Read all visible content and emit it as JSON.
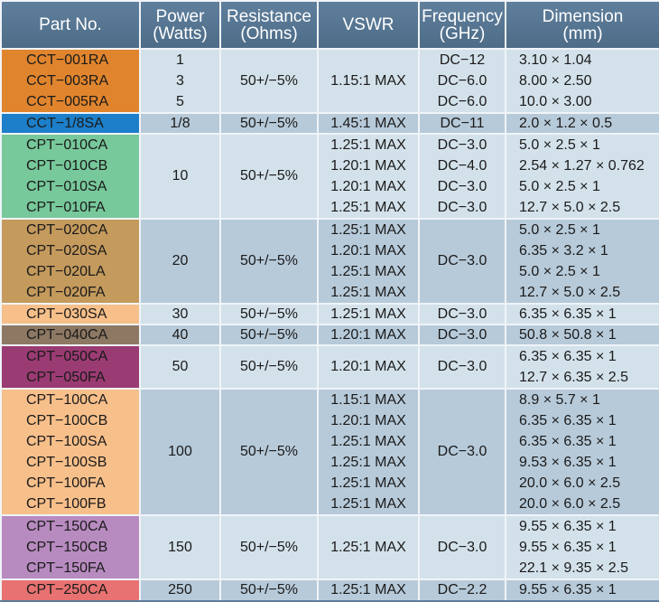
{
  "header": {
    "part_no": "Part No.",
    "power": "Power\n(Watts)",
    "resistance": "Resistance\n(Ohms)",
    "vswr": "VSWR",
    "frequency": "Frequency\n(GHz)",
    "dimension": "Dimension\n(mm)"
  },
  "colors": {
    "row_light": "#d3e1ea",
    "row_dark": "#b7cad9",
    "header_bg": "#5a7a97",
    "groups": [
      "#e0852e",
      "#1d7fc9",
      "#77c89a",
      "#c49a5d",
      "#f7bf8a",
      "#8c7863",
      "#9b3b73",
      "#f7bf8a",
      "#b78bc0",
      "#e87271"
    ]
  },
  "rows": [
    {
      "part": "CCT−001RA",
      "power": "1",
      "resistance": "50+/−5%",
      "vswr": "1.15:1 MAX",
      "frequency": "DC−12",
      "dimension": "3.10 × 1.04"
    },
    {
      "part": "CCT−003RA",
      "power": "3",
      "resistance": "50+/−5%",
      "vswr": "1.15:1 MAX",
      "frequency": "DC−6.0",
      "dimension": "8.00 × 2.50"
    },
    {
      "part": "CCT−005RA",
      "power": "5",
      "resistance": "50+/−5%",
      "vswr": "1.15:1 MAX",
      "frequency": "DC−6.0",
      "dimension": "10.0 × 3.00"
    },
    {
      "part": "CCT−1/8SA",
      "power": "1/8",
      "resistance": "50+/−5%",
      "vswr": "1.45:1 MAX",
      "frequency": "DC−11",
      "dimension": "2.0 × 1.2 × 0.5"
    },
    {
      "part": "CPT−010CA",
      "power": "10",
      "resistance": "50+/−5%",
      "vswr": "1.25:1 MAX",
      "frequency": "DC−3.0",
      "dimension": "5.0 × 2.5 × 1"
    },
    {
      "part": "CPT−010CB",
      "power": "10",
      "resistance": "50+/−5%",
      "vswr": "1.20:1 MAX",
      "frequency": "DC−4.0",
      "dimension": "2.54 × 1.27 × 0.762"
    },
    {
      "part": "CPT−010SA",
      "power": "10",
      "resistance": "50+/−5%",
      "vswr": "1.20:1 MAX",
      "frequency": "DC−3.0",
      "dimension": "5.0 × 2.5 × 1"
    },
    {
      "part": "CPT−010FA",
      "power": "10",
      "resistance": "50+/−5%",
      "vswr": "1.25:1 MAX",
      "frequency": "DC−3.0",
      "dimension": "12.7 × 5.0 × 2.5"
    },
    {
      "part": "CPT−020CA",
      "power": "20",
      "resistance": "50+/−5%",
      "vswr": "1.25:1 MAX",
      "frequency": "DC−3.0",
      "dimension": "5.0 × 2.5 × 1"
    },
    {
      "part": "CPT−020SA",
      "power": "20",
      "resistance": "50+/−5%",
      "vswr": "1.20:1 MAX",
      "frequency": "DC−3.0",
      "dimension": "6.35 × 3.2 × 1"
    },
    {
      "part": "CPT−020LA",
      "power": "20",
      "resistance": "50+/−5%",
      "vswr": "1.25:1 MAX",
      "frequency": "DC−3.0",
      "dimension": "5.0 × 2.5 × 1"
    },
    {
      "part": "CPT−020FA",
      "power": "20",
      "resistance": "50+/−5%",
      "vswr": "1.25:1 MAX",
      "frequency": "DC−3.0",
      "dimension": "12.7 × 5.0 × 2.5"
    },
    {
      "part": "CPT−030SA",
      "power": "30",
      "resistance": "50+/−5%",
      "vswr": "1.25:1 MAX",
      "frequency": "DC−3.0",
      "dimension": "6.35 × 6.35 × 1"
    },
    {
      "part": "CPT−040CA",
      "power": "40",
      "resistance": "50+/−5%",
      "vswr": "1.20:1 MAX",
      "frequency": "DC−3.0",
      "dimension": "50.8 × 50.8 × 1"
    },
    {
      "part": "CPT−050CA",
      "power": "50",
      "resistance": "50+/−5%",
      "vswr": "1.20:1 MAX",
      "frequency": "DC−3.0",
      "dimension": "6.35 × 6.35 × 1"
    },
    {
      "part": "CPT−050FA",
      "power": "50",
      "resistance": "50+/−5%",
      "vswr": "1.20:1 MAX",
      "frequency": "DC−3.0",
      "dimension": "12.7 × 6.35 × 2.5"
    },
    {
      "part": "CPT−100CA",
      "power": "100",
      "resistance": "50+/−5%",
      "vswr": "1.15:1 MAX",
      "frequency": "DC−3.0",
      "dimension": "8.9 × 5.7 × 1"
    },
    {
      "part": "CPT−100CB",
      "power": "100",
      "resistance": "50+/−5%",
      "vswr": "1.20:1 MAX",
      "frequency": "DC−3.0",
      "dimension": "6.35 × 6.35 × 1"
    },
    {
      "part": "CPT−100SA",
      "power": "100",
      "resistance": "50+/−5%",
      "vswr": "1.25:1 MAX",
      "frequency": "DC−3.0",
      "dimension": "6.35 × 6.35 × 1"
    },
    {
      "part": "CPT−100SB",
      "power": "100",
      "resistance": "50+/−5%",
      "vswr": "1.25:1 MAX",
      "frequency": "DC−3.0",
      "dimension": "9.53 × 6.35 × 1"
    },
    {
      "part": "CPT−100FA",
      "power": "100",
      "resistance": "50+/−5%",
      "vswr": "1.25:1 MAX",
      "frequency": "DC−3.0",
      "dimension": "20.0 × 6.0 × 2.5"
    },
    {
      "part": "CPT−100FB",
      "power": "100",
      "resistance": "50+/−5%",
      "vswr": "1.25:1 MAX",
      "frequency": "DC−3.0",
      "dimension": "20.0 × 6.0 × 2.5"
    },
    {
      "part": "CPT−150CA",
      "power": "150",
      "resistance": "50+/−5%",
      "vswr": "1.25:1 MAX",
      "frequency": "DC−3.0",
      "dimension": "9.55 × 6.35 × 1"
    },
    {
      "part": "CPT−150CB",
      "power": "150",
      "resistance": "50+/−5%",
      "vswr": "1.25:1 MAX",
      "frequency": "DC−3.0",
      "dimension": "9.55 × 6.35 × 1"
    },
    {
      "part": "CPT−150FA",
      "power": "150",
      "resistance": "50+/−5%",
      "vswr": "1.25:1 MAX",
      "frequency": "DC−3.0",
      "dimension": "22.1 × 9.35 × 2.5"
    },
    {
      "part": "CPT−250CA",
      "power": "250",
      "resistance": "50+/−5%",
      "vswr": "1.25:1 MAX",
      "frequency": "DC−2.2",
      "dimension": "9.55 × 6.35 × 1"
    }
  ]
}
